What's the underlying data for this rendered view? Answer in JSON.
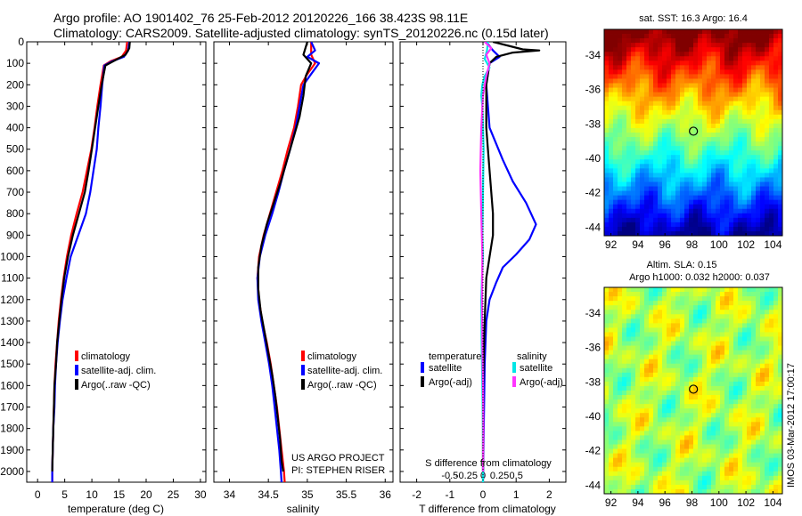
{
  "header": {
    "line1": "Argo profile: AO 1901402_76 25-Feb-2012 20120226_166 38.423S 98.11E",
    "line2": "Climatology: CARS2009. Satellite-adjusted climatology: synTS_20120226.nc (0.15d later)"
  },
  "colors": {
    "climatology": "#ff0000",
    "satellite": "#0000ff",
    "argo": "#000000",
    "sat_salinity": "#00e6e6",
    "argo_salinity": "#ff33ff"
  },
  "chart_data": [
    {
      "id": "temperature",
      "type": "line",
      "xlabel": "temperature (deg C)",
      "ylabel": "",
      "xlim": [
        -2,
        31
      ],
      "ylim": [
        0,
        2050
      ],
      "y_reversed": true,
      "xticks": [
        0,
        5,
        10,
        15,
        20,
        25,
        30
      ],
      "yticks": [
        0,
        100,
        200,
        300,
        400,
        500,
        600,
        700,
        800,
        900,
        1000,
        1100,
        1200,
        1300,
        1400,
        1500,
        1600,
        1700,
        1800,
        1900,
        2000
      ],
      "legend": [
        "climatology",
        "satellite-adj. clim.",
        "Argo(..raw -QC)"
      ],
      "series": [
        {
          "name": "climatology",
          "color": "#ff0000",
          "points": [
            [
              16.5,
              0
            ],
            [
              16.3,
              40
            ],
            [
              15.5,
              70
            ],
            [
              13.5,
              90
            ],
            [
              12.2,
              110
            ],
            [
              11.6,
              200
            ],
            [
              11.0,
              300
            ],
            [
              10.5,
              400
            ],
            [
              9.9,
              500
            ],
            [
              9.1,
              600
            ],
            [
              8.3,
              700
            ],
            [
              7.2,
              800
            ],
            [
              6.2,
              900
            ],
            [
              5.4,
              1000
            ],
            [
              4.8,
              1100
            ],
            [
              4.3,
              1200
            ],
            [
              3.9,
              1300
            ],
            [
              3.6,
              1400
            ],
            [
              3.3,
              1500
            ],
            [
              3.1,
              1600
            ],
            [
              3.0,
              1700
            ],
            [
              2.9,
              1800
            ],
            [
              2.8,
              1900
            ],
            [
              2.7,
              2000
            ],
            [
              2.7,
              2050
            ]
          ]
        },
        {
          "name": "satellite-adj. clim.",
          "color": "#0000ff",
          "points": [
            [
              16.9,
              0
            ],
            [
              16.7,
              40
            ],
            [
              15.9,
              70
            ],
            [
              13.8,
              90
            ],
            [
              12.3,
              110
            ],
            [
              11.9,
              200
            ],
            [
              11.6,
              300
            ],
            [
              11.2,
              400
            ],
            [
              10.9,
              500
            ],
            [
              10.3,
              600
            ],
            [
              9.7,
              700
            ],
            [
              8.9,
              800
            ],
            [
              7.5,
              900
            ],
            [
              6.1,
              1000
            ],
            [
              5.3,
              1100
            ],
            [
              4.6,
              1200
            ],
            [
              4.1,
              1300
            ],
            [
              3.7,
              1400
            ],
            [
              3.4,
              1500
            ],
            [
              3.2,
              1600
            ],
            [
              3.1,
              1700
            ],
            [
              2.9,
              1800
            ],
            [
              2.8,
              1900
            ],
            [
              2.7,
              2000
            ],
            [
              2.7,
              2050
            ]
          ]
        },
        {
          "name": "Argo(..raw -QC)",
          "color": "#000000",
          "points": [
            [
              17.0,
              0
            ],
            [
              16.9,
              30
            ],
            [
              16.2,
              60
            ],
            [
              14.0,
              90
            ],
            [
              12.5,
              110
            ],
            [
              11.8,
              200
            ],
            [
              11.2,
              300
            ],
            [
              10.6,
              400
            ],
            [
              10.0,
              500
            ],
            [
              9.4,
              600
            ],
            [
              8.7,
              700
            ],
            [
              7.6,
              800
            ],
            [
              6.5,
              900
            ],
            [
              5.6,
              1000
            ],
            [
              4.9,
              1100
            ],
            [
              4.4,
              1200
            ],
            [
              4.0,
              1300
            ],
            [
              3.6,
              1400
            ],
            [
              3.4,
              1500
            ],
            [
              3.1,
              1600
            ],
            [
              3.0,
              1700
            ],
            [
              2.9,
              1800
            ],
            [
              2.8,
              1900
            ],
            [
              2.7,
              2000
            ]
          ]
        }
      ]
    },
    {
      "id": "salinity",
      "type": "line",
      "xlabel": "salinity",
      "xlim": [
        33.8,
        36.1
      ],
      "ylim": [
        0,
        2050
      ],
      "y_reversed": true,
      "xticks": [
        34,
        34.5,
        35,
        35.5,
        36
      ],
      "xticklabels": [
        "34",
        "34.5",
        "35",
        "35.5",
        "36"
      ],
      "legend": [
        "climatology",
        "satellite-adj. clim.",
        "Argo(..raw -QC)"
      ],
      "annotation": [
        "US ARGO PROJECT",
        "PI: STEPHEN RISER"
      ],
      "series": [
        {
          "name": "climatology",
          "color": "#ff0000",
          "points": [
            [
              35.05,
              0
            ],
            [
              35.05,
              60
            ],
            [
              35.1,
              100
            ],
            [
              35.0,
              150
            ],
            [
              34.92,
              200
            ],
            [
              34.88,
              300
            ],
            [
              34.83,
              400
            ],
            [
              34.75,
              500
            ],
            [
              34.68,
              600
            ],
            [
              34.6,
              700
            ],
            [
              34.52,
              800
            ],
            [
              34.44,
              900
            ],
            [
              34.38,
              1000
            ],
            [
              34.36,
              1100
            ],
            [
              34.38,
              1200
            ],
            [
              34.42,
              1300
            ],
            [
              34.48,
              1400
            ],
            [
              34.53,
              1500
            ],
            [
              34.57,
              1600
            ],
            [
              34.61,
              1700
            ],
            [
              34.64,
              1800
            ],
            [
              34.67,
              1900
            ],
            [
              34.7,
              2000
            ],
            [
              34.71,
              2050
            ]
          ]
        },
        {
          "name": "satellite-adj. clim.",
          "color": "#0000ff",
          "points": [
            [
              35.05,
              0
            ],
            [
              35.1,
              40
            ],
            [
              35.0,
              70
            ],
            [
              35.15,
              100
            ],
            [
              35.05,
              150
            ],
            [
              34.95,
              200
            ],
            [
              34.9,
              300
            ],
            [
              34.85,
              400
            ],
            [
              34.78,
              500
            ],
            [
              34.7,
              600
            ],
            [
              34.63,
              700
            ],
            [
              34.55,
              800
            ],
            [
              34.46,
              900
            ],
            [
              34.39,
              1000
            ],
            [
              34.36,
              1100
            ],
            [
              34.37,
              1200
            ],
            [
              34.41,
              1300
            ],
            [
              34.46,
              1400
            ],
            [
              34.51,
              1500
            ],
            [
              34.55,
              1600
            ],
            [
              34.58,
              1700
            ],
            [
              34.61,
              1800
            ],
            [
              34.64,
              1900
            ],
            [
              34.66,
              2000
            ],
            [
              34.67,
              2050
            ]
          ]
        },
        {
          "name": "Argo(..raw -QC)",
          "color": "#000000",
          "points": [
            [
              35.0,
              0
            ],
            [
              34.95,
              60
            ],
            [
              35.05,
              100
            ],
            [
              34.98,
              160
            ],
            [
              34.95,
              250
            ],
            [
              34.9,
              350
            ],
            [
              34.82,
              450
            ],
            [
              34.74,
              550
            ],
            [
              34.66,
              650
            ],
            [
              34.57,
              750
            ],
            [
              34.48,
              850
            ],
            [
              34.41,
              950
            ],
            [
              34.37,
              1050
            ],
            [
              34.37,
              1150
            ],
            [
              34.4,
              1250
            ],
            [
              34.45,
              1350
            ],
            [
              34.5,
              1450
            ],
            [
              34.55,
              1550
            ],
            [
              34.59,
              1650
            ],
            [
              34.62,
              1750
            ],
            [
              34.65,
              1850
            ],
            [
              34.67,
              1950
            ],
            [
              34.69,
              2000
            ]
          ]
        }
      ]
    },
    {
      "id": "differences",
      "type": "line",
      "xlabel": "T difference from climatology",
      "secondary_xlabel": "S difference from climatology",
      "xlim": [
        -2.5,
        2.5
      ],
      "ylim": [
        0,
        2050
      ],
      "y_reversed": true,
      "xticks": [
        -2,
        -1,
        0,
        1,
        2
      ],
      "secondary_ticks": [
        -0.5,
        -0.25,
        0,
        0.25,
        0.5
      ],
      "secondary_tick_labels": [
        "-0.5",
        "-0.25",
        "0",
        "0.25",
        "0.5"
      ],
      "legend_headers": [
        "temperature",
        "salinity"
      ],
      "legend": [
        "satellite",
        "Argo(-adj)",
        "satellite",
        "Argo(-adj)"
      ],
      "series": [
        {
          "name": "temperature satellite",
          "color": "#0000ff",
          "points": [
            [
              0.1,
              0
            ],
            [
              0.3,
              40
            ],
            [
              0.5,
              70
            ],
            [
              0.2,
              100
            ],
            [
              0.1,
              200
            ],
            [
              0.2,
              400
            ],
            [
              0.6,
              550
            ],
            [
              0.9,
              650
            ],
            [
              1.3,
              750
            ],
            [
              1.6,
              850
            ],
            [
              1.4,
              920
            ],
            [
              1.0,
              990
            ],
            [
              0.6,
              1050
            ],
            [
              0.4,
              1120
            ],
            [
              0.2,
              1200
            ],
            [
              0.1,
              1300
            ],
            [
              0.05,
              1500
            ],
            [
              0.0,
              2050
            ]
          ]
        },
        {
          "name": "temperature Argo(-adj)",
          "color": "#000000",
          "points": [
            [
              0.3,
              0
            ],
            [
              1.2,
              35
            ],
            [
              1.7,
              40
            ],
            [
              0.9,
              50
            ],
            [
              0.4,
              70
            ],
            [
              0.2,
              100
            ],
            [
              0.1,
              200
            ],
            [
              0.1,
              400
            ],
            [
              0.2,
              600
            ],
            [
              0.3,
              800
            ],
            [
              0.3,
              900
            ],
            [
              0.2,
              1000
            ],
            [
              0.1,
              1100
            ],
            [
              0.05,
              1300
            ],
            [
              0.0,
              1600
            ],
            [
              0.0,
              2000
            ]
          ]
        },
        {
          "name": "salinity satellite",
          "color": "#00e6e6",
          "points": [
            [
              0.15,
              0
            ],
            [
              0.12,
              40
            ],
            [
              0.05,
              80
            ],
            [
              0.2,
              120
            ],
            [
              0.05,
              160
            ],
            [
              -0.02,
              200
            ],
            [
              -0.05,
              250
            ],
            [
              -0.02,
              300
            ],
            [
              0.0,
              400
            ],
            [
              0.02,
              500
            ],
            [
              0.0,
              700
            ],
            [
              -0.02,
              900
            ],
            [
              0.0,
              1000
            ],
            [
              -0.03,
              1100
            ],
            [
              -0.05,
              1200
            ],
            [
              -0.04,
              1400
            ],
            [
              -0.02,
              1600
            ],
            [
              0.0,
              1800
            ],
            [
              0.0,
              2050
            ]
          ]
        },
        {
          "name": "salinity Argo(-adj)",
          "color": "#ff33ff",
          "points": [
            [
              0.05,
              0
            ],
            [
              0.25,
              30
            ],
            [
              0.1,
              60
            ],
            [
              0.2,
              100
            ],
            [
              0.1,
              160
            ],
            [
              0.0,
              250
            ],
            [
              -0.05,
              400
            ],
            [
              -0.08,
              600
            ],
            [
              -0.05,
              800
            ],
            [
              -0.02,
              1000
            ],
            [
              -0.03,
              1200
            ],
            [
              -0.02,
              1400
            ],
            [
              0.0,
              1600
            ],
            [
              0.01,
              1800
            ],
            [
              0.0,
              2000
            ]
          ]
        }
      ]
    },
    {
      "id": "sst_map",
      "type": "heatmap",
      "title": "sat. SST: 16.3 Argo: 16.4",
      "xticks": [
        92,
        94,
        96,
        98,
        100,
        102,
        104
      ],
      "yticks": [
        -34,
        -36,
        -38,
        -40,
        -42,
        -44
      ],
      "xlim": [
        91.5,
        104.7
      ],
      "ylim": [
        -44.5,
        -32.5
      ],
      "marker": {
        "lon": 98.11,
        "lat": -38.42
      }
    },
    {
      "id": "sla_map",
      "type": "heatmap",
      "title": [
        "Altim. SLA: 0.15",
        "Argo h1000: 0.032 h2000: 0.037"
      ],
      "xticks": [
        92,
        94,
        96,
        98,
        100,
        102,
        104
      ],
      "yticks": [
        -34,
        -36,
        -38,
        -40,
        -42,
        -44
      ],
      "xlim": [
        91.5,
        104.7
      ],
      "ylim": [
        -44.5,
        -32.5
      ],
      "marker": {
        "lon": 98.11,
        "lat": -38.42
      }
    }
  ],
  "side_label": "IMOS 03-Mar-2012 17:00:17"
}
